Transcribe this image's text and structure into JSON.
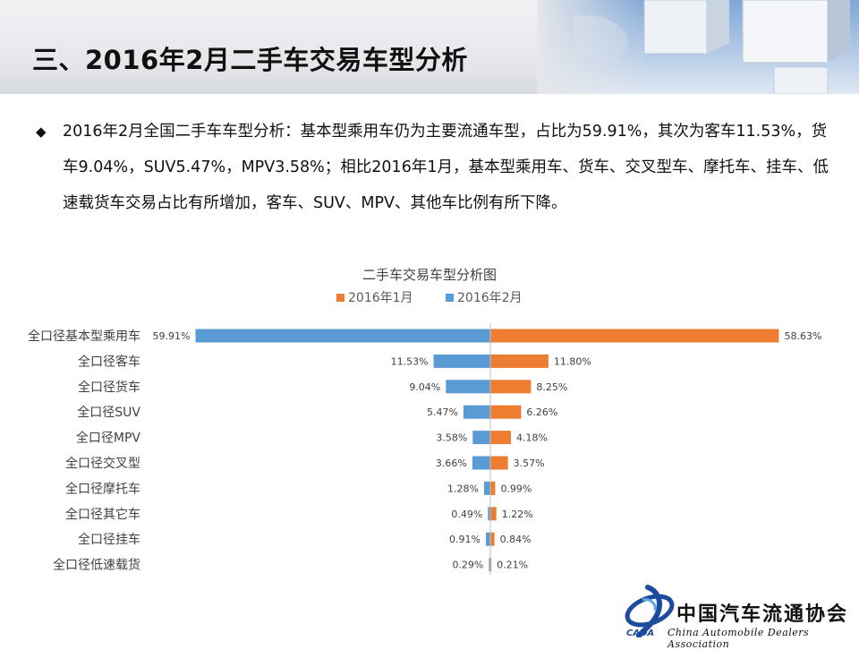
{
  "slide": {
    "title": "三、2016年2月二手车交易车型分析",
    "paragraph": "2016年2月全国二手车车型分析：基本型乘用车仍为主要流通车型，占比为59.91%，其次为客车11.53%，货车9.04%，SUV5.47%，MPV3.58%；相比2016年1月，基本型乘用车、货车、交叉型车、摩托车、挂车、低速载货车交易占比有所增加，客车、SUV、MPV、其他车比例有所下降。",
    "bullet_icon": "diamond-bullet-icon"
  },
  "logo": {
    "name_cn": "中国汽车流通协会",
    "name_en": "China Automobile Dealers Association",
    "abbr": "CADA",
    "icon": "cada-logo-icon"
  },
  "chart_data": {
    "type": "bar",
    "orientation": "horizontal-diverging",
    "title": "二手车交易车型分析图",
    "categories": [
      "全口径基本型乘用车",
      "全口径客车",
      "全口径货车",
      "全口径SUV",
      "全口径MPV",
      "全口径交叉型",
      "全口径摩托车",
      "全口径其它车",
      "全口径挂车",
      "全口径低速载货"
    ],
    "series": [
      {
        "name": "2016年1月",
        "color": "#ed7d31",
        "side": "right",
        "values": [
          58.63,
          11.8,
          8.25,
          6.26,
          4.18,
          3.57,
          0.99,
          1.22,
          0.84,
          0.21
        ],
        "labels": [
          "58.63%",
          "11.80%",
          "8.25%",
          "6.26%",
          "4.18%",
          "3.57%",
          "0.99%",
          "1.22%",
          "0.84%",
          "0.21%"
        ]
      },
      {
        "name": "2016年2月",
        "color": "#5b9bd5",
        "side": "left",
        "values": [
          59.91,
          11.53,
          9.04,
          5.47,
          3.58,
          3.66,
          1.28,
          0.49,
          0.91,
          0.29
        ],
        "labels": [
          "59.91%",
          "11.53%",
          "9.04%",
          "5.47%",
          "3.58%",
          "3.66%",
          "1.28%",
          "0.49%",
          "0.91%",
          "0.29%"
        ]
      }
    ],
    "legend": "top-center",
    "grid": false,
    "axis_line_color": "#bfbfbf"
  }
}
